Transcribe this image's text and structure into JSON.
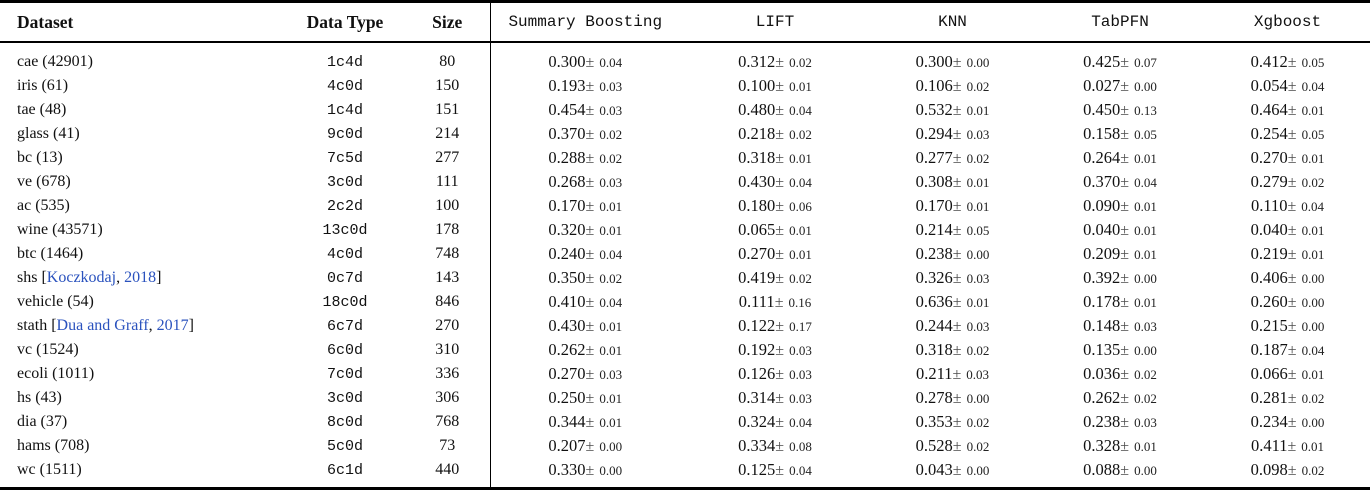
{
  "meta": {
    "pm_symbol": "±"
  },
  "colors": {
    "citation_blue": "#2a52be"
  },
  "header": {
    "dataset": "Dataset",
    "data_type": "Data Type",
    "size": "Size",
    "methods": [
      "Summary Boosting",
      "LIFT",
      "KNN",
      "TabPFN",
      "Xgboost"
    ]
  },
  "rows": [
    {
      "dataset": [
        {
          "t": "cae (42901)",
          "blue": false
        }
      ],
      "data_type": "1c4d",
      "size": "80",
      "values": [
        {
          "mean": "0.300",
          "err": "0.04"
        },
        {
          "mean": "0.312",
          "err": "0.02"
        },
        {
          "mean": "0.300",
          "err": "0.00"
        },
        {
          "mean": "0.425",
          "err": "0.07"
        },
        {
          "mean": "0.412",
          "err": "0.05"
        }
      ]
    },
    {
      "dataset": [
        {
          "t": "iris (61)",
          "blue": false
        }
      ],
      "data_type": "4c0d",
      "size": "150",
      "values": [
        {
          "mean": "0.193",
          "err": "0.03"
        },
        {
          "mean": "0.100",
          "err": "0.01"
        },
        {
          "mean": "0.106",
          "err": "0.02"
        },
        {
          "mean": "0.027",
          "err": "0.00"
        },
        {
          "mean": "0.054",
          "err": "0.04"
        }
      ]
    },
    {
      "dataset": [
        {
          "t": "tae (48)",
          "blue": false
        }
      ],
      "data_type": "1c4d",
      "size": "151",
      "values": [
        {
          "mean": "0.454",
          "err": "0.03"
        },
        {
          "mean": "0.480",
          "err": "0.04"
        },
        {
          "mean": "0.532",
          "err": "0.01"
        },
        {
          "mean": "0.450",
          "err": "0.13"
        },
        {
          "mean": "0.464",
          "err": "0.01"
        }
      ]
    },
    {
      "dataset": [
        {
          "t": "glass (41)",
          "blue": false
        }
      ],
      "data_type": "9c0d",
      "size": "214",
      "values": [
        {
          "mean": "0.370",
          "err": "0.02"
        },
        {
          "mean": "0.218",
          "err": "0.02"
        },
        {
          "mean": "0.294",
          "err": "0.03"
        },
        {
          "mean": "0.158",
          "err": "0.05"
        },
        {
          "mean": "0.254",
          "err": "0.05"
        }
      ]
    },
    {
      "dataset": [
        {
          "t": "bc (13)",
          "blue": false
        }
      ],
      "data_type": "7c5d",
      "size": "277",
      "values": [
        {
          "mean": "0.288",
          "err": "0.02"
        },
        {
          "mean": "0.318",
          "err": "0.01"
        },
        {
          "mean": "0.277",
          "err": "0.02"
        },
        {
          "mean": "0.264",
          "err": "0.01"
        },
        {
          "mean": "0.270",
          "err": "0.01"
        }
      ]
    },
    {
      "dataset": [
        {
          "t": "ve (678)",
          "blue": false
        }
      ],
      "data_type": "3c0d",
      "size": "111",
      "values": [
        {
          "mean": "0.268",
          "err": "0.03"
        },
        {
          "mean": "0.430",
          "err": "0.04"
        },
        {
          "mean": "0.308",
          "err": "0.01"
        },
        {
          "mean": "0.370",
          "err": "0.04"
        },
        {
          "mean": "0.279",
          "err": "0.02"
        }
      ]
    },
    {
      "dataset": [
        {
          "t": "ac (535)",
          "blue": false
        }
      ],
      "data_type": "2c2d",
      "size": "100",
      "values": [
        {
          "mean": "0.170",
          "err": "0.01"
        },
        {
          "mean": "0.180",
          "err": "0.06"
        },
        {
          "mean": "0.170",
          "err": "0.01"
        },
        {
          "mean": "0.090",
          "err": "0.01"
        },
        {
          "mean": "0.110",
          "err": "0.04"
        }
      ]
    },
    {
      "dataset": [
        {
          "t": "wine (43571)",
          "blue": false
        }
      ],
      "data_type": "13c0d",
      "size": "178",
      "values": [
        {
          "mean": "0.320",
          "err": "0.01"
        },
        {
          "mean": "0.065",
          "err": "0.01"
        },
        {
          "mean": "0.214",
          "err": "0.05"
        },
        {
          "mean": "0.040",
          "err": "0.01"
        },
        {
          "mean": "0.040",
          "err": "0.01"
        }
      ]
    },
    {
      "dataset": [
        {
          "t": "btc (1464)",
          "blue": false
        }
      ],
      "data_type": "4c0d",
      "size": "748",
      "values": [
        {
          "mean": "0.240",
          "err": "0.04"
        },
        {
          "mean": "0.270",
          "err": "0.01"
        },
        {
          "mean": "0.238",
          "err": "0.00"
        },
        {
          "mean": "0.209",
          "err": "0.01"
        },
        {
          "mean": "0.219",
          "err": "0.01"
        }
      ]
    },
    {
      "dataset": [
        {
          "t": "shs [",
          "blue": false
        },
        {
          "t": "Koczkodaj",
          "blue": true
        },
        {
          "t": ", ",
          "blue": false
        },
        {
          "t": "2018",
          "blue": true
        },
        {
          "t": "]",
          "blue": false
        }
      ],
      "data_type": "0c7d",
      "size": "143",
      "values": [
        {
          "mean": "0.350",
          "err": "0.02"
        },
        {
          "mean": "0.419",
          "err": "0.02"
        },
        {
          "mean": "0.326",
          "err": "0.03"
        },
        {
          "mean": "0.392",
          "err": "0.00"
        },
        {
          "mean": "0.406",
          "err": "0.00"
        }
      ]
    },
    {
      "dataset": [
        {
          "t": "vehicle (54)",
          "blue": false
        }
      ],
      "data_type": "18c0d",
      "size": "846",
      "values": [
        {
          "mean": "0.410",
          "err": "0.04"
        },
        {
          "mean": "0.111",
          "err": "0.16"
        },
        {
          "mean": "0.636",
          "err": "0.01"
        },
        {
          "mean": "0.178",
          "err": "0.01"
        },
        {
          "mean": "0.260",
          "err": "0.00"
        }
      ]
    },
    {
      "dataset": [
        {
          "t": "stath [",
          "blue": false
        },
        {
          "t": "Dua and Graff",
          "blue": true
        },
        {
          "t": ", ",
          "blue": false
        },
        {
          "t": "2017",
          "blue": true
        },
        {
          "t": "]",
          "blue": false
        }
      ],
      "data_type": "6c7d",
      "size": "270",
      "values": [
        {
          "mean": "0.430",
          "err": "0.01"
        },
        {
          "mean": "0.122",
          "err": "0.17"
        },
        {
          "mean": "0.244",
          "err": "0.03"
        },
        {
          "mean": "0.148",
          "err": "0.03"
        },
        {
          "mean": "0.215",
          "err": "0.00"
        }
      ]
    },
    {
      "dataset": [
        {
          "t": "vc (1524)",
          "blue": false
        }
      ],
      "data_type": "6c0d",
      "size": "310",
      "values": [
        {
          "mean": "0.262",
          "err": "0.01"
        },
        {
          "mean": "0.192",
          "err": "0.03"
        },
        {
          "mean": "0.318",
          "err": "0.02"
        },
        {
          "mean": "0.135",
          "err": "0.00"
        },
        {
          "mean": "0.187",
          "err": "0.04"
        }
      ]
    },
    {
      "dataset": [
        {
          "t": "ecoli (1011)",
          "blue": false
        }
      ],
      "data_type": "7c0d",
      "size": "336",
      "values": [
        {
          "mean": "0.270",
          "err": "0.03"
        },
        {
          "mean": "0.126",
          "err": "0.03"
        },
        {
          "mean": "0.211",
          "err": "0.03"
        },
        {
          "mean": "0.036",
          "err": "0.02"
        },
        {
          "mean": "0.066",
          "err": "0.01"
        }
      ]
    },
    {
      "dataset": [
        {
          "t": "hs (43)",
          "blue": false
        }
      ],
      "data_type": "3c0d",
      "size": "306",
      "values": [
        {
          "mean": "0.250",
          "err": "0.01"
        },
        {
          "mean": "0.314",
          "err": "0.03"
        },
        {
          "mean": "0.278",
          "err": "0.00"
        },
        {
          "mean": "0.262",
          "err": "0.02"
        },
        {
          "mean": "0.281",
          "err": "0.02"
        }
      ]
    },
    {
      "dataset": [
        {
          "t": "dia (37)",
          "blue": false
        }
      ],
      "data_type": "8c0d",
      "size": "768",
      "values": [
        {
          "mean": "0.344",
          "err": "0.01"
        },
        {
          "mean": "0.324",
          "err": "0.04"
        },
        {
          "mean": "0.353",
          "err": "0.02"
        },
        {
          "mean": "0.238",
          "err": "0.03"
        },
        {
          "mean": "0.234",
          "err": "0.00"
        }
      ]
    },
    {
      "dataset": [
        {
          "t": "hams (708)",
          "blue": false
        }
      ],
      "data_type": "5c0d",
      "size": "73",
      "values": [
        {
          "mean": "0.207",
          "err": "0.00"
        },
        {
          "mean": "0.334",
          "err": "0.08"
        },
        {
          "mean": "0.528",
          "err": "0.02"
        },
        {
          "mean": "0.328",
          "err": "0.01"
        },
        {
          "mean": "0.411",
          "err": "0.01"
        }
      ]
    },
    {
      "dataset": [
        {
          "t": "wc (1511)",
          "blue": false
        }
      ],
      "data_type": "6c1d",
      "size": "440",
      "values": [
        {
          "mean": "0.330",
          "err": "0.00"
        },
        {
          "mean": "0.125",
          "err": "0.04"
        },
        {
          "mean": "0.043",
          "err": "0.00"
        },
        {
          "mean": "0.088",
          "err": "0.00"
        },
        {
          "mean": "0.098",
          "err": "0.02"
        }
      ]
    }
  ]
}
